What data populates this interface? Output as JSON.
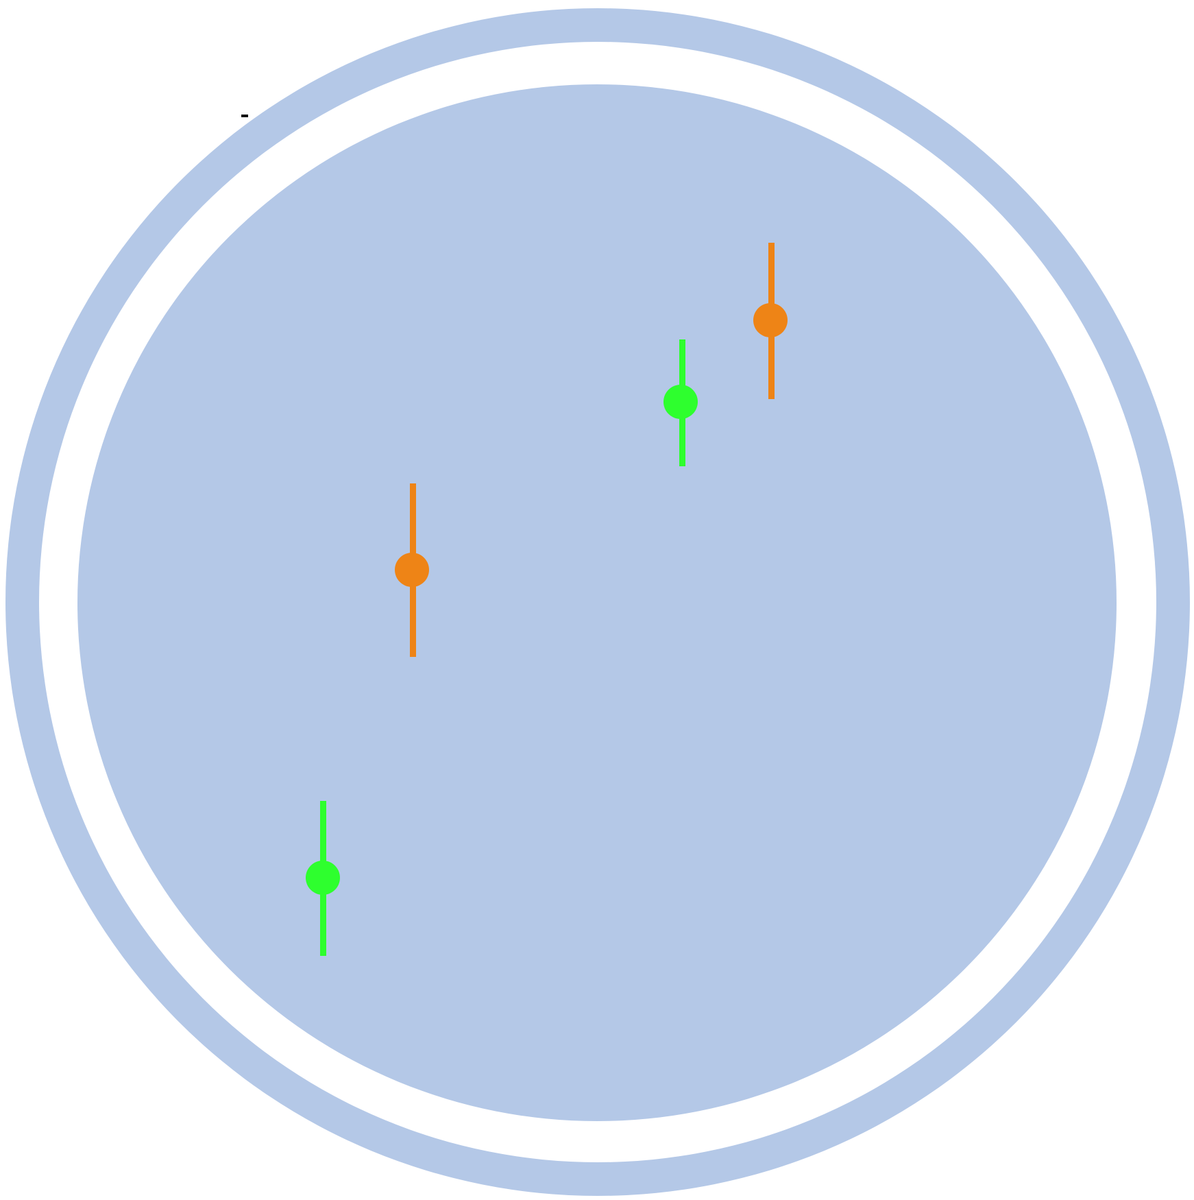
{
  "colors": {
    "background": "#ffffff",
    "disc": "#b4c8e7",
    "gap": "#ffffff",
    "series_green": "#2eff2e",
    "series_orange": "#ee8416",
    "mark": "#111111"
  },
  "markers": [
    {
      "series": "green",
      "color": "#2eff2e"
    },
    {
      "series": "orange",
      "color": "#ee8416"
    },
    {
      "series": "green",
      "color": "#2eff2e"
    },
    {
      "series": "orange",
      "color": "#ee8416"
    }
  ]
}
